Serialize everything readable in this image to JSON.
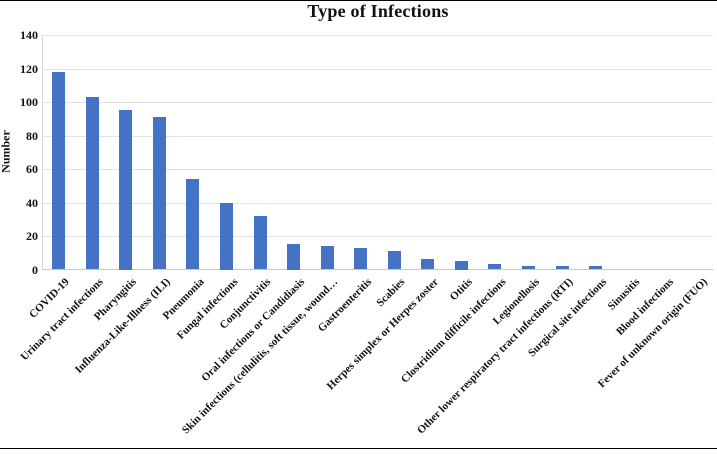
{
  "figure": {
    "title": "Type of Infections"
  },
  "chart_data": {
    "type": "bar",
    "title": "Type of Infections",
    "xlabel": "",
    "ylabel": "Number",
    "ylim": [
      0,
      140
    ],
    "yticks": [
      0,
      20,
      40,
      60,
      80,
      100,
      120,
      140
    ],
    "grid": "horizontal",
    "legend": "none",
    "bar_color": "#4472C4",
    "gridline_color": "#e3e3e3",
    "categories": [
      "COVID-19",
      "Urinary tract infections",
      "Pharyngitis",
      "Influenza-Like-Illness (ILI)",
      "Pneumonia",
      "Fungal infections",
      "Conjunctivitis",
      "Oral infections or Candidiasis",
      "Skin infections (cellulitis, soft tissue, wound…",
      "Gastroenteritis",
      "Scabies",
      "Herpes simplex or Herpes zoster",
      "Otitis",
      "Clostridium difficile infections",
      "Legionellosis",
      "Other lower respiratory tract infections (RTI)",
      "Surgical site infections",
      "Sinusitis",
      "Blood infections",
      "Fever of unknown origin  (FUO)"
    ],
    "values": [
      118,
      103,
      95,
      91,
      54,
      40,
      32,
      15,
      14,
      13,
      11,
      6,
      5,
      3,
      2,
      2,
      2,
      0,
      0,
      0
    ]
  }
}
